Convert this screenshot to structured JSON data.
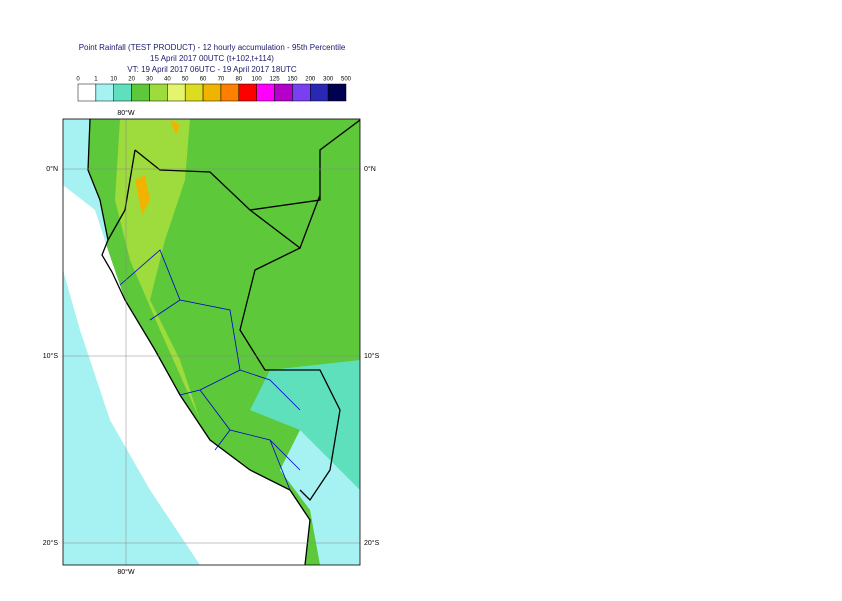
{
  "header": {
    "title_lines": [
      "Point Rainfall (TEST PRODUCT) - 12 hourly accumulation - 95th Percentile",
      "15 April 2017 00UTC (t+102,t+114)",
      "VT: 19 April 2017 06UTC - 19 April 2017 18UTC"
    ]
  },
  "legend": {
    "labels": [
      "0",
      "1",
      "10",
      "20",
      "30",
      "40",
      "50",
      "60",
      "70",
      "80",
      "100",
      "125",
      "150",
      "200",
      "300",
      "500"
    ],
    "colors": [
      "#ffffff",
      "#a6f2f2",
      "#5ee0bc",
      "#5cc83a",
      "#9ddc3c",
      "#e4f46c",
      "#dcdc20",
      "#f0b400",
      "#ff8000",
      "#ff0000",
      "#ff00ff",
      "#b400c8",
      "#7840f0",
      "#2828b4",
      "#000050"
    ]
  },
  "map": {
    "lon_labels": {
      "top": "80°W",
      "bottom": "80°W"
    },
    "lat_labels": [
      {
        "left": "0°N",
        "right": "0°N"
      },
      {
        "left": "10°S",
        "right": "10°S"
      },
      {
        "left": "20°S",
        "right": "20°S"
      }
    ]
  }
}
